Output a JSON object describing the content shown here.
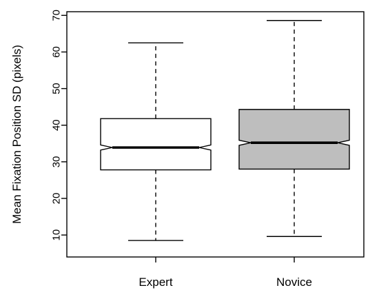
{
  "chart_data": {
    "type": "boxplot",
    "title": "",
    "xlabel": "",
    "ylabel": "Mean Fixation Position SD (pixels)",
    "ylim": [
      4,
      71
    ],
    "yticks": [
      10,
      20,
      30,
      40,
      50,
      60,
      70
    ],
    "notched": true,
    "grid": false,
    "categories": [
      "Expert",
      "Novice"
    ],
    "boxes": [
      {
        "name": "Expert",
        "min": 8.5,
        "q1": 27.8,
        "median": 33.9,
        "q3": 41.8,
        "max": 62.5,
        "notch_low": 33.2,
        "notch_high": 34.6,
        "fill": "#ffffff"
      },
      {
        "name": "Novice",
        "min": 9.6,
        "q1": 28.0,
        "median": 35.2,
        "q3": 44.3,
        "max": 68.6,
        "notch_low": 34.5,
        "notch_high": 35.9,
        "fill": "#bebebe"
      }
    ]
  }
}
